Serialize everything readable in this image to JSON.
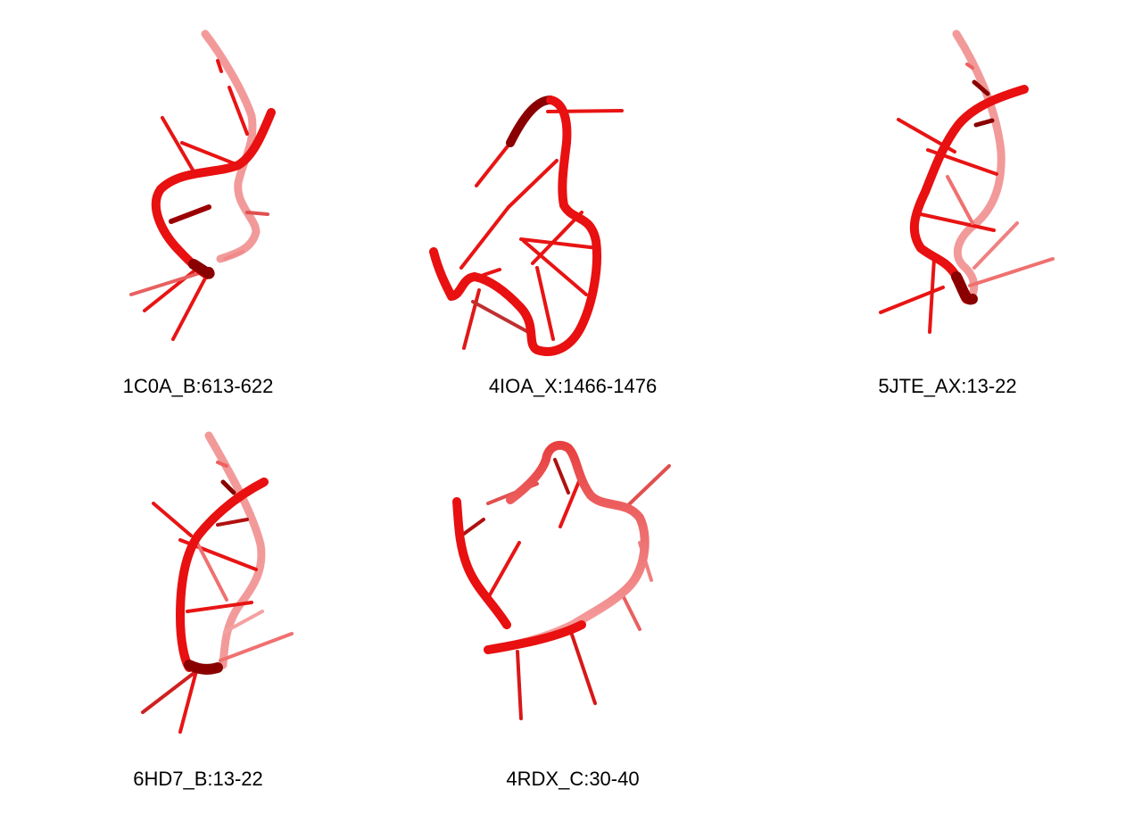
{
  "figure": {
    "colors": {
      "backbone": "#e81010",
      "backbone_shadow": "#8a0000",
      "base": "#f01a1a",
      "background": "#ffffff"
    },
    "panels": [
      {
        "id": "1C0A_B",
        "label": "1C0A_B:613-622"
      },
      {
        "id": "4IOA_X",
        "label": "4IOA_X:1466-1476"
      },
      {
        "id": "5JTE_AX",
        "label": "5JTE_AX:13-22"
      },
      {
        "id": "6HD7_B",
        "label": "6HD7_B:13-22"
      },
      {
        "id": "4RDX_C",
        "label": "4RDX_C:30-40"
      }
    ]
  }
}
